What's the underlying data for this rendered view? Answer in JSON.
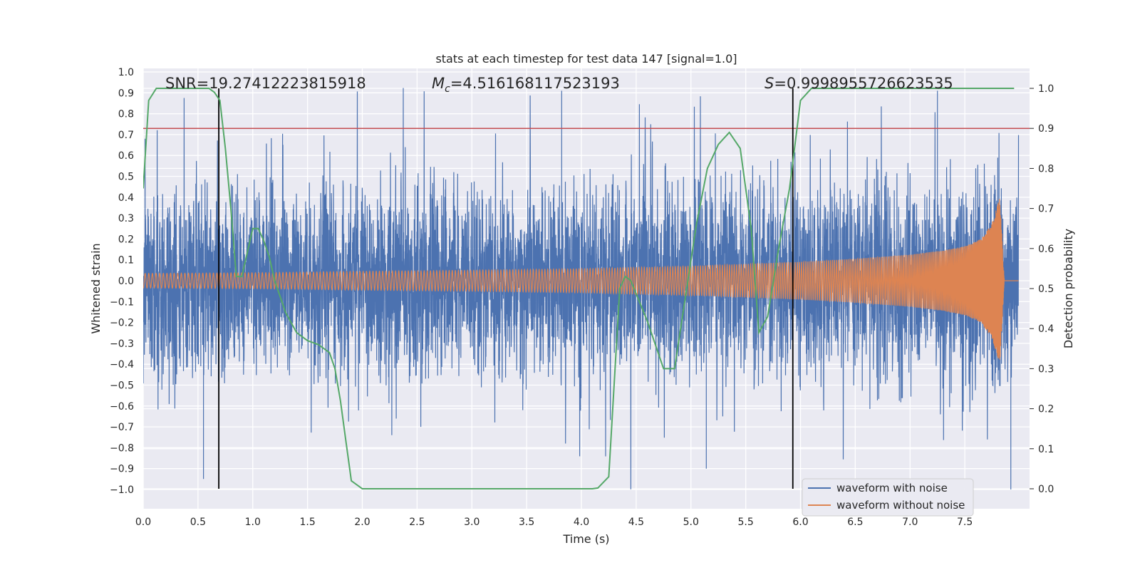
{
  "chart_data": {
    "type": "line",
    "title": "stats at each timestep for test data 147 [signal=1.0]",
    "xlabel": "Time (s)",
    "ylabel": "Whitened strain",
    "y2label": "Detection probability",
    "xlim": [
      0.0,
      8.0
    ],
    "ylim": [
      -1.1,
      1.0
    ],
    "y2lim": [
      -0.05,
      1.05
    ],
    "x_ticks": [
      "0.0",
      "0.5",
      "1.0",
      "1.5",
      "2.0",
      "2.5",
      "3.0",
      "3.5",
      "4.0",
      "4.5",
      "5.0",
      "5.5",
      "6.0",
      "6.5",
      "7.0",
      "7.5"
    ],
    "y_ticks": [
      "1.0",
      "0.9",
      "0.8",
      "0.7",
      "0.6",
      "0.5",
      "0.4",
      "0.3",
      "0.2",
      "0.1",
      "0.0",
      "−0.1",
      "−0.2",
      "−0.3",
      "−0.4",
      "−0.5",
      "−0.6",
      "−0.7",
      "−0.8",
      "−0.9",
      "−1.0"
    ],
    "y2_ticks": [
      "1.0",
      "0.9",
      "0.8",
      "0.7",
      "0.6",
      "0.5",
      "0.4",
      "0.3",
      "0.2",
      "0.1",
      "0.0"
    ],
    "grid": true,
    "legend_position": "lower right",
    "annotations": {
      "snr": "SNR=19.27412223815918",
      "mc_symbol": "M",
      "mc_subscript": "c",
      "mc_value": "=4.516168117523193",
      "s_symbol": "S",
      "s_value": "=0.9998955726623535"
    },
    "series": [
      {
        "name": "waveform with noise",
        "color": "#4c72b0",
        "description_values": {
          "amplitude_typical": 0.45,
          "spikes": [
            [
              0.55,
              -0.95
            ],
            [
              3.82,
              0.91
            ],
            [
              5.14,
              -0.9
            ],
            [
              7.25,
              0.91
            ],
            [
              7.92,
              -1.0
            ]
          ]
        }
      },
      {
        "name": "waveform without noise",
        "color": "#dd8452",
        "envelope": {
          "t": [
            0.0,
            1.0,
            2.0,
            3.0,
            4.0,
            5.0,
            5.5,
            6.0,
            6.5,
            7.0,
            7.3,
            7.5,
            7.65,
            7.75,
            7.82,
            7.86,
            7.9
          ],
          "amp": [
            0.035,
            0.038,
            0.045,
            0.05,
            0.057,
            0.07,
            0.08,
            0.09,
            0.105,
            0.125,
            0.145,
            0.165,
            0.2,
            0.28,
            0.4,
            0.0,
            0.0
          ]
        }
      },
      {
        "name": "Detection probability",
        "color": "#55a868",
        "axis": "y2",
        "x": [
          0.0,
          0.05,
          0.12,
          0.2,
          0.3,
          0.4,
          0.5,
          0.6,
          0.65,
          0.7,
          0.75,
          0.8,
          0.85,
          0.9,
          0.95,
          1.0,
          1.05,
          1.1,
          1.15,
          1.2,
          1.3,
          1.4,
          1.5,
          1.6,
          1.65,
          1.7,
          1.75,
          1.8,
          1.85,
          1.9,
          2.0,
          2.5,
          3.0,
          3.5,
          4.0,
          4.1,
          4.15,
          4.25,
          4.35,
          4.4,
          4.45,
          4.6,
          4.75,
          4.85,
          4.95,
          5.05,
          5.15,
          5.25,
          5.35,
          5.45,
          5.55,
          5.62,
          5.7,
          5.8,
          5.9,
          6.0,
          6.1,
          6.5,
          7.0,
          7.5,
          7.95
        ],
        "y": [
          0.75,
          0.97,
          1.0,
          1.0,
          1.0,
          1.0,
          1.0,
          1.0,
          0.99,
          0.97,
          0.85,
          0.7,
          0.53,
          0.53,
          0.59,
          0.65,
          0.65,
          0.62,
          0.58,
          0.52,
          0.44,
          0.39,
          0.37,
          0.36,
          0.35,
          0.34,
          0.3,
          0.22,
          0.12,
          0.02,
          0.0,
          0.0,
          0.0,
          0.0,
          0.0,
          0.0,
          0.002,
          0.03,
          0.5,
          0.53,
          0.52,
          0.42,
          0.3,
          0.3,
          0.48,
          0.66,
          0.8,
          0.86,
          0.89,
          0.85,
          0.65,
          0.39,
          0.43,
          0.6,
          0.75,
          0.97,
          1.0,
          1.0,
          1.0,
          1.0,
          1.0
        ]
      },
      {
        "name": "threshold",
        "color": "#c44e52",
        "axis": "y2",
        "value": 0.9
      }
    ],
    "vertical_lines": {
      "color": "#000000",
      "x": [
        0.69,
        5.93
      ]
    }
  }
}
